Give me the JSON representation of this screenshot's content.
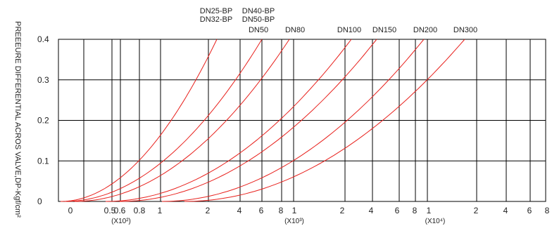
{
  "chart_data": {
    "type": "line",
    "ylabel": "PREEEURE DIFFERENTIAL ACROS VALVE,DP-Kgf/cm²",
    "ylim": [
      0,
      0.4
    ],
    "y_ticks": [
      "0",
      "0.1",
      "0.2",
      "0.3",
      "0.4"
    ],
    "x_ticks": [
      "0",
      "0.5",
      "0.6",
      "0.8",
      "1",
      "2",
      "4",
      "6",
      "8",
      "1",
      "2",
      "4",
      "6",
      "8",
      "1",
      "2",
      "4",
      "6",
      "8"
    ],
    "x_multipliers": [
      "(X10²)",
      "(X10³)",
      "(X10⁴)"
    ],
    "curve_labels": [
      {
        "lines": [
          "DN25-BP",
          "DN32-BP"
        ]
      },
      {
        "lines": [
          "DN40-BP",
          "DN50-BP",
          "DN50"
        ]
      },
      {
        "lines": [
          "DN80"
        ]
      },
      {
        "lines": [
          "DN100"
        ]
      },
      {
        "lines": [
          "DN150"
        ]
      },
      {
        "lines": [
          "DN200"
        ]
      },
      {
        "lines": [
          "DN300"
        ]
      }
    ],
    "series_color": "#e8201c",
    "grid": true
  }
}
